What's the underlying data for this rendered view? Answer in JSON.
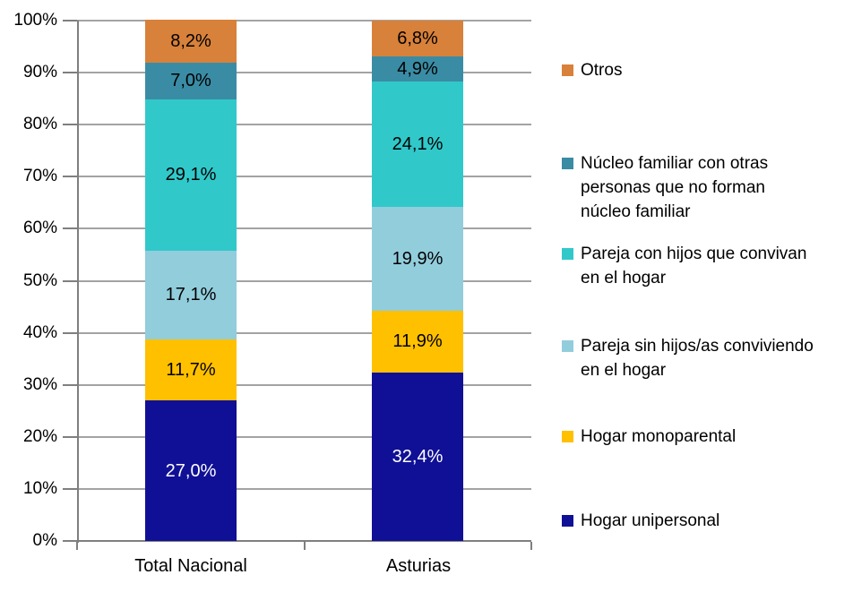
{
  "chart_data": {
    "type": "bar",
    "stacked": true,
    "units": "percent",
    "title": "",
    "xlabel": "",
    "ylabel": "",
    "categories": [
      "Total Nacional",
      "Asturias"
    ],
    "series": [
      {
        "name": "Hogar unipersonal",
        "color": "#101096",
        "label_color": "#FFFFFF",
        "values": [
          27.0,
          32.4
        ],
        "labels": [
          "27,0%",
          "32,4%"
        ]
      },
      {
        "name": "Hogar monoparental",
        "color": "#FFC000",
        "label_color": "#000000",
        "values": [
          11.7,
          11.9
        ],
        "labels": [
          "11,7%",
          "11,9%"
        ]
      },
      {
        "name": "Pareja sin hijos/as conviviendo en el hogar",
        "color": "#92CDDC",
        "label_color": "#000000",
        "values": [
          17.1,
          19.9
        ],
        "labels": [
          "17,1%",
          "19,9%"
        ]
      },
      {
        "name": "Pareja con hijos que convivan en el hogar",
        "color": "#31C8CA",
        "label_color": "#000000",
        "values": [
          29.1,
          24.1
        ],
        "labels": [
          "29,1%",
          "24,1%"
        ]
      },
      {
        "name": "Núcleo familiar con otras personas que no forman núcleo familiar",
        "color": "#3A8CA5",
        "label_color": "#000000",
        "values": [
          7.0,
          4.9
        ],
        "labels": [
          "7,0%",
          "4,9%"
        ]
      },
      {
        "name": "Otros",
        "color": "#D8813A",
        "label_color": "#000000",
        "values": [
          8.2,
          6.8
        ],
        "labels": [
          "8,2%",
          "6,8%"
        ]
      }
    ],
    "y_axis": {
      "min": 0,
      "max": 100,
      "step": 10,
      "tick_labels": [
        "0%",
        "10%",
        "20%",
        "30%",
        "40%",
        "50%",
        "60%",
        "70%",
        "80%",
        "90%",
        "100%"
      ]
    },
    "grid": true,
    "legend": {
      "position": "right",
      "items": [
        {
          "label": "Otros",
          "color": "#D8813A"
        },
        {
          "label": "Núcleo familiar con otras\npersonas que no forman\nnúcleo familiar",
          "color": "#3A8CA5"
        },
        {
          "label": "Pareja con hijos que convivan\nen el hogar",
          "color": "#31C8CA"
        },
        {
          "label": "Pareja sin hijos/as conviviendo\nen el hogar",
          "color": "#92CDDC"
        },
        {
          "label": "Hogar monoparental",
          "color": "#FFC000"
        },
        {
          "label": "Hogar unipersonal",
          "color": "#101096"
        }
      ]
    },
    "colors": {
      "gridline": "#A3A3A3",
      "axis": "#7F7F7F",
      "background": "#FFFFFF"
    }
  }
}
